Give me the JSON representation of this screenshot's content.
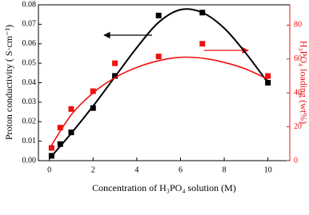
{
  "chart_data": {
    "type": "scatter",
    "x_label": "Concentration of H₃PO₄ solution (M)",
    "y_label": "Proton conductivity ( S·cm⁻¹)",
    "y2_label": "H₃PO₄ loading (wt%)",
    "xlim": [
      -0.5,
      11
    ],
    "xticks": [
      0,
      2,
      4,
      6,
      8,
      10
    ],
    "ylim": [
      0,
      0.08
    ],
    "yticks": [
      {
        "value": 0,
        "label": "0.00"
      },
      {
        "value": 0.01,
        "label": "0.01"
      },
      {
        "value": 0.02,
        "label": "0.02"
      },
      {
        "value": 0.03,
        "label": "0.03"
      },
      {
        "value": 0.04,
        "label": "0.04"
      },
      {
        "value": 0.05,
        "label": "0.05"
      },
      {
        "value": 0.06,
        "label": "0.06"
      },
      {
        "value": 0.07,
        "label": "0.07"
      },
      {
        "value": 0.08,
        "label": "0.08"
      }
    ],
    "y2lim": [
      0,
      92
    ],
    "y2ticks": [
      0,
      20,
      40,
      60,
      80
    ],
    "y2_color": "#ee1111",
    "series": [
      {
        "color": "#000000",
        "marker": "square",
        "x": [
          0.1,
          0.5,
          1,
          2,
          3,
          5,
          7,
          10
        ],
        "values": [
          0.0025,
          0.0085,
          0.0145,
          0.027,
          0.0435,
          0.0745,
          0.076,
          0.04
        ]
      },
      {
        "color": "#000000",
        "line": true,
        "x": [
          0,
          1,
          2,
          3,
          4,
          5,
          6,
          7,
          8,
          9,
          10
        ],
        "values": [
          0.001,
          0.014,
          0.028,
          0.043,
          0.058,
          0.071,
          0.0775,
          0.076,
          0.068,
          0.055,
          0.04
        ]
      },
      {
        "color": "#ee1111",
        "marker": "square",
        "axis": "y2",
        "x": [
          0.1,
          0.5,
          1,
          2,
          3,
          5,
          7,
          10
        ],
        "values": [
          7.5,
          19.5,
          30.5,
          41,
          57.5,
          61.5,
          69,
          50
        ]
      },
      {
        "color": "#ee1111",
        "line": true,
        "axis": "y2",
        "x": [
          0,
          1,
          2,
          3,
          4,
          5,
          6,
          7,
          8,
          9,
          10
        ],
        "values": [
          7,
          27,
          40,
          49,
          55,
          59,
          61,
          60.5,
          58,
          54,
          48
        ]
      }
    ]
  }
}
